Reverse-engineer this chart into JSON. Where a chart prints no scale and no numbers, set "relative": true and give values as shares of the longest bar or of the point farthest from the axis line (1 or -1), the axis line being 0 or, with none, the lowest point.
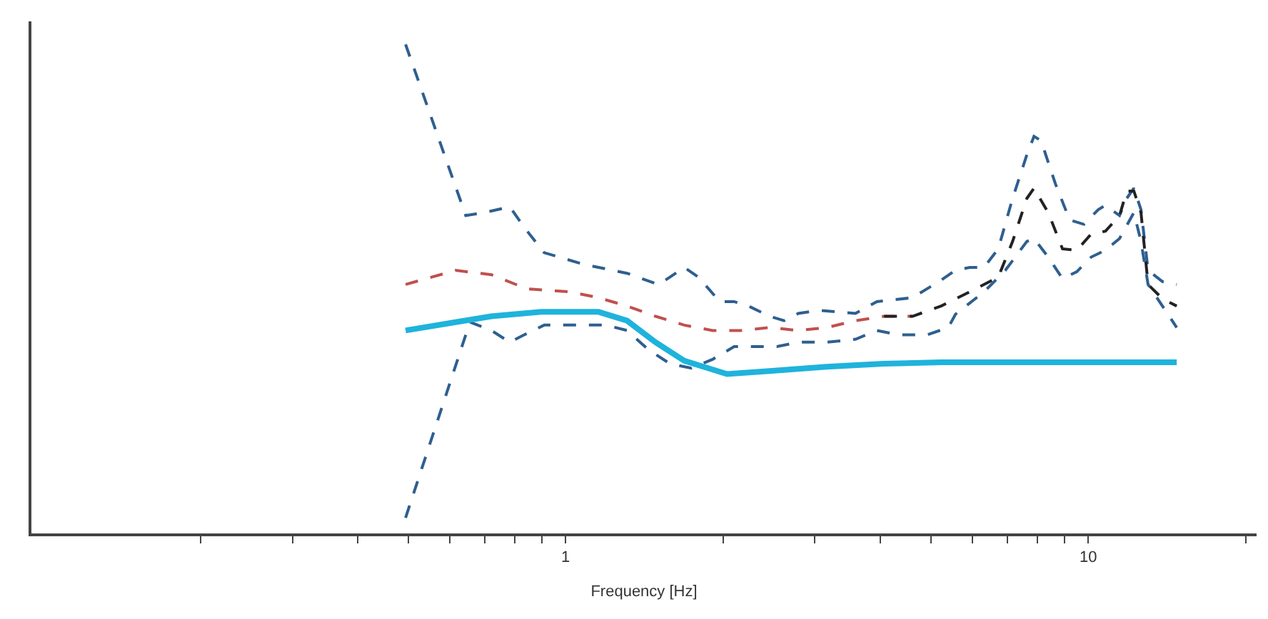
{
  "chart_data": {
    "type": "line",
    "relative": true,
    "xlabel": "Frequency [Hz]",
    "log": "x",
    "xlim": [
      0.095,
      21
    ],
    "xticks": [
      {
        "value": 0.2,
        "label": null
      },
      {
        "value": 0.3,
        "label": null
      },
      {
        "value": 0.4,
        "label": null
      },
      {
        "value": 0.5,
        "label": null
      },
      {
        "value": 0.6,
        "label": null
      },
      {
        "value": 0.7,
        "label": null
      },
      {
        "value": 0.8,
        "label": null
      },
      {
        "value": 0.9,
        "label": null
      },
      1,
      {
        "value": 2,
        "label": null
      },
      {
        "value": 3,
        "label": null
      },
      {
        "value": 4,
        "label": null
      },
      {
        "value": 5,
        "label": null
      },
      {
        "value": 6,
        "label": null
      },
      {
        "value": 7,
        "label": null
      },
      {
        "value": 8,
        "label": null
      },
      {
        "value": 9,
        "label": null
      },
      10,
      {
        "value": 20,
        "label": null
      }
    ],
    "grid": false,
    "marker": "none",
    "series": [
      {
        "color": "#2e5f8f",
        "line_style": "dashed",
        "x": [
          0.494,
          0.644,
          0.699,
          0.782,
          0.833,
          0.91,
          1.085,
          1.311,
          1.505,
          1.583,
          1.686,
          1.795,
          1.973,
          2.101,
          2.237,
          2.459,
          2.618,
          2.789,
          3.064,
          3.586,
          3.942,
          4.612,
          5.232,
          5.571,
          5.934,
          6.318,
          6.729,
          7.166,
          7.631,
          7.875,
          8.125,
          8.654,
          9.215,
          9.813,
          10.45,
          10.79,
          11.48,
          11.85,
          12.23,
          12.62,
          13.02,
          13.87,
          14.77
        ],
        "values": [
          1.0,
          0.65,
          0.656,
          0.668,
          0.626,
          0.574,
          0.55,
          0.532,
          0.509,
          0.524,
          0.544,
          0.524,
          0.474,
          0.474,
          0.465,
          0.444,
          0.435,
          0.45,
          0.456,
          0.45,
          0.474,
          0.482,
          0.518,
          0.538,
          0.544,
          0.544,
          0.582,
          0.685,
          0.774,
          0.812,
          0.803,
          0.715,
          0.641,
          0.632,
          0.662,
          0.671,
          0.65,
          0.685,
          0.706,
          0.662,
          0.538,
          0.515,
          0.509
        ]
      },
      {
        "color": "#c0504d",
        "line_style": "dashed",
        "x": [
          0.494,
          0.616,
          0.721,
          0.844,
          1.019,
          1.156,
          1.311,
          1.486,
          1.686,
          1.911,
          2.168,
          2.459,
          2.789,
          3.162,
          3.586,
          4.068,
          4.612
        ],
        "values": [
          0.509,
          0.538,
          0.529,
          0.5,
          0.494,
          0.482,
          0.465,
          0.444,
          0.426,
          0.415,
          0.415,
          0.421,
          0.415,
          0.421,
          0.435,
          0.444,
          0.444
        ]
      },
      {
        "color": "#222222",
        "line_style": "dashed",
        "x": [
          4.068,
          4.612,
          5.232,
          5.934,
          6.729,
          7.166,
          7.631,
          7.875,
          8.386,
          8.929,
          9.509,
          10.13,
          10.79,
          11.48,
          11.85,
          12.23,
          12.62,
          13.02,
          13.87,
          14.77
        ],
        "values": [
          0.444,
          0.444,
          0.465,
          0.494,
          0.524,
          0.597,
          0.685,
          0.706,
          0.656,
          0.582,
          0.579,
          0.612,
          0.618,
          0.65,
          0.7,
          0.7,
          0.656,
          0.509,
          0.48,
          0.465
        ]
      },
      {
        "color": "#2e5f8f",
        "line_style": "dashed",
        "x": [
          0.494,
          0.656,
          0.721,
          0.782,
          0.833,
          0.91,
          1.019,
          1.193,
          1.311,
          1.44,
          1.583,
          1.74,
          1.911,
          2.101,
          2.309,
          2.537,
          2.789,
          3.162,
          3.586,
          3.942,
          4.331,
          4.913,
          5.399,
          5.571,
          6.318,
          6.943,
          7.631,
          7.875,
          8.386,
          8.929,
          9.509,
          10.13,
          10.79,
          11.48,
          12.23,
          12.62,
          13.02,
          13.87,
          14.77
        ],
        "values": [
          0.032,
          0.432,
          0.415,
          0.391,
          0.406,
          0.426,
          0.426,
          0.426,
          0.415,
          0.376,
          0.347,
          0.338,
          0.356,
          0.382,
          0.382,
          0.382,
          0.391,
          0.391,
          0.397,
          0.415,
          0.406,
          0.406,
          0.421,
          0.448,
          0.494,
          0.538,
          0.597,
          0.603,
          0.565,
          0.521,
          0.535,
          0.565,
          0.579,
          0.603,
          0.656,
          0.597,
          0.509,
          0.465,
          0.421
        ]
      },
      {
        "color": "#1fb3dc",
        "line_style": "solid",
        "x": [
          0.494,
          0.616,
          0.721,
          0.899,
          1.156,
          1.311,
          1.486,
          1.686,
          2.036,
          2.459,
          3.162,
          4.068,
          5.232,
          5.934,
          8.0,
          10.0,
          12.0,
          14.77
        ],
        "values": [
          0.415,
          0.432,
          0.444,
          0.453,
          0.453,
          0.435,
          0.391,
          0.353,
          0.326,
          0.332,
          0.341,
          0.347,
          0.35,
          0.35,
          0.35,
          0.35,
          0.35,
          0.35
        ]
      }
    ]
  }
}
